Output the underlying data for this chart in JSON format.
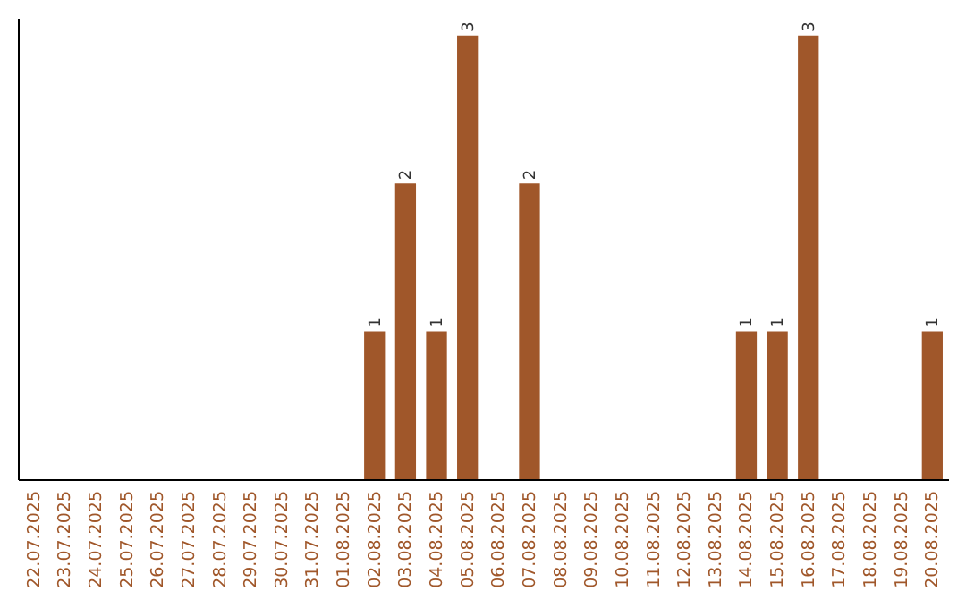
{
  "chart_data": {
    "type": "bar",
    "categories": [
      "22.07.2025",
      "23.07.2025",
      "24.07.2025",
      "25.07.2025",
      "26.07.2025",
      "27.07.2025",
      "28.07.2025",
      "29.07.2025",
      "30.07.2025",
      "31.07.2025",
      "01.08.2025",
      "02.08.2025",
      "03.08.2025",
      "04.08.2025",
      "05.08.2025",
      "06.08.2025",
      "07.08.2025",
      "08.08.2025",
      "09.08.2025",
      "10.08.2025",
      "11.08.2025",
      "12.08.2025",
      "13.08.2025",
      "14.08.2025",
      "15.08.2025",
      "16.08.2025",
      "17.08.2025",
      "18.08.2025",
      "19.08.2025",
      "20.08.2025"
    ],
    "values": [
      0,
      0,
      0,
      0,
      0,
      0,
      0,
      0,
      0,
      0,
      0,
      1,
      2,
      1,
      3,
      0,
      2,
      0,
      0,
      0,
      0,
      0,
      0,
      1,
      1,
      3,
      0,
      0,
      0,
      1
    ],
    "value_labels": [
      null,
      null,
      null,
      null,
      null,
      null,
      null,
      null,
      null,
      null,
      null,
      "1",
      "2",
      "1",
      "3",
      null,
      "2",
      null,
      null,
      null,
      null,
      null,
      null,
      "1",
      "1",
      "3",
      null,
      null,
      null,
      "1"
    ],
    "color": "#a0572a",
    "grid": false
  }
}
